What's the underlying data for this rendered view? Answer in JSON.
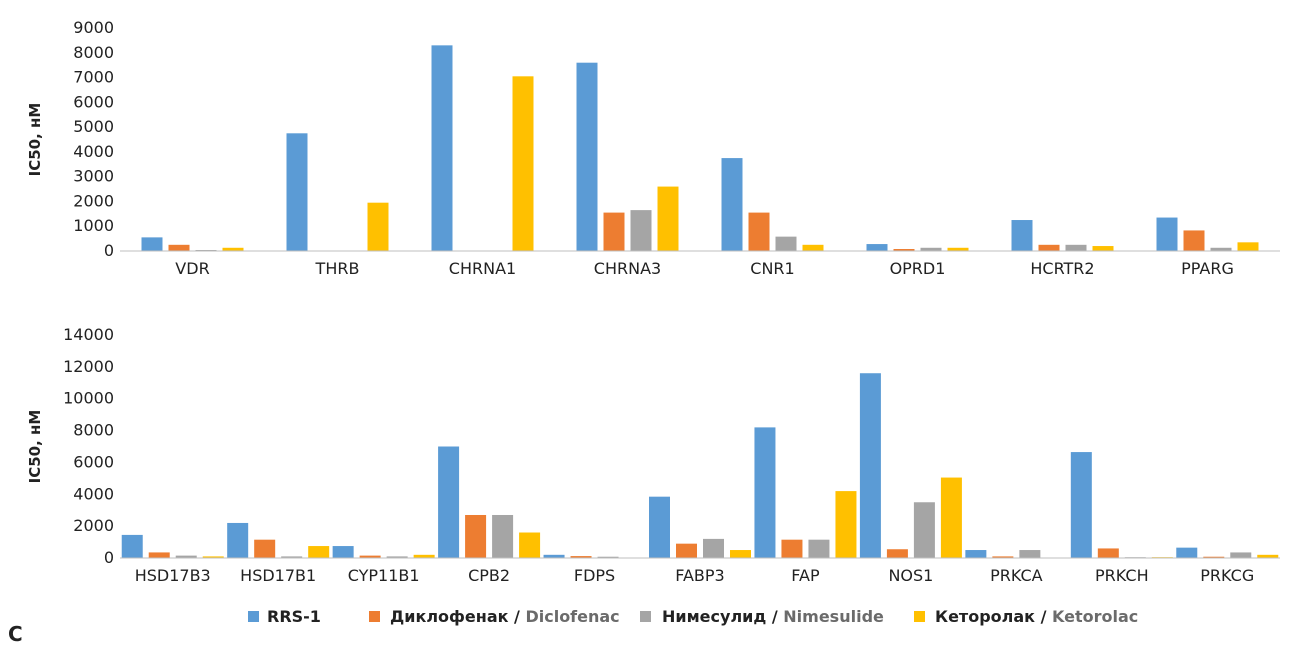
{
  "colors": {
    "rrs1": "#5b9bd5",
    "diclofenac": "#ed7d31",
    "nimesulide": "#a5a5a5",
    "ketorolac": "#ffc000",
    "axis": "#bfbfbf",
    "text": "#222222",
    "legend_en_text": "#6b6b6b"
  },
  "legend": [
    {
      "series": 0,
      "ru": "RRS-1",
      "en": ""
    },
    {
      "series": 1,
      "ru": "Диклофенак / ",
      "en": "Diclofenac"
    },
    {
      "series": 2,
      "ru": "Нимесулид / ",
      "en": "Nimesulide"
    },
    {
      "series": 3,
      "ru": "Кеторолак / ",
      "en": "Ketorolac"
    }
  ],
  "panel_label": "C",
  "chart_data": [
    {
      "type": "bar",
      "ylabel": "IC50, нМ",
      "xlabel": "",
      "ylim": [
        0,
        9000
      ],
      "yticks": [
        0,
        1000,
        2000,
        3000,
        4000,
        5000,
        6000,
        7000,
        8000,
        9000
      ],
      "grid": false,
      "legend_position": "bottom",
      "categories": [
        "VDR",
        "THRB",
        "CHRNA1",
        "CHRNA3",
        "CNR1",
        "OPRD1",
        "HCRTR2",
        "PPARG"
      ],
      "series": [
        {
          "name": "RRS-1",
          "values": [
            550,
            4750,
            8300,
            7600,
            3750,
            280,
            1250,
            1350
          ]
        },
        {
          "name": "Диклофенак / Diclofenac",
          "values": [
            250,
            20,
            20,
            1550,
            1550,
            80,
            250,
            830
          ]
        },
        {
          "name": "Нимесулид / Nimesulide",
          "values": [
            40,
            20,
            20,
            1650,
            580,
            130,
            250,
            130
          ]
        },
        {
          "name": "Кеторолак / Ketorolac",
          "values": [
            130,
            1950,
            7050,
            2600,
            250,
            130,
            200,
            350
          ]
        }
      ]
    },
    {
      "type": "bar",
      "ylabel": "IC50, нМ",
      "xlabel": "",
      "ylim": [
        0,
        14000
      ],
      "yticks": [
        0,
        2000,
        4000,
        6000,
        8000,
        10000,
        12000,
        14000
      ],
      "grid": false,
      "legend_position": "bottom",
      "categories": [
        "HSD17B3",
        "HSD17B1",
        "CYP11B1",
        "CPB2",
        "FDPS",
        "FABP3",
        "FAP",
        "NOS1",
        "PRKCA",
        "PRKCH",
        "PRKCG"
      ],
      "series": [
        {
          "name": "RRS-1",
          "values": [
            1450,
            2200,
            750,
            7000,
            200,
            3850,
            8200,
            11600,
            500,
            6650,
            650
          ]
        },
        {
          "name": "Диклофенак / Diclofenac",
          "values": [
            350,
            1150,
            150,
            2700,
            120,
            900,
            1150,
            550,
            100,
            600,
            80
          ]
        },
        {
          "name": "Нимесулид / Nimesulide",
          "values": [
            150,
            100,
            100,
            2700,
            80,
            1200,
            1150,
            3500,
            500,
            50,
            350
          ]
        },
        {
          "name": "Кеторолак / Ketorolac",
          "values": [
            100,
            750,
            200,
            1600,
            20,
            500,
            4200,
            5050,
            20,
            50,
            200
          ]
        }
      ]
    }
  ]
}
